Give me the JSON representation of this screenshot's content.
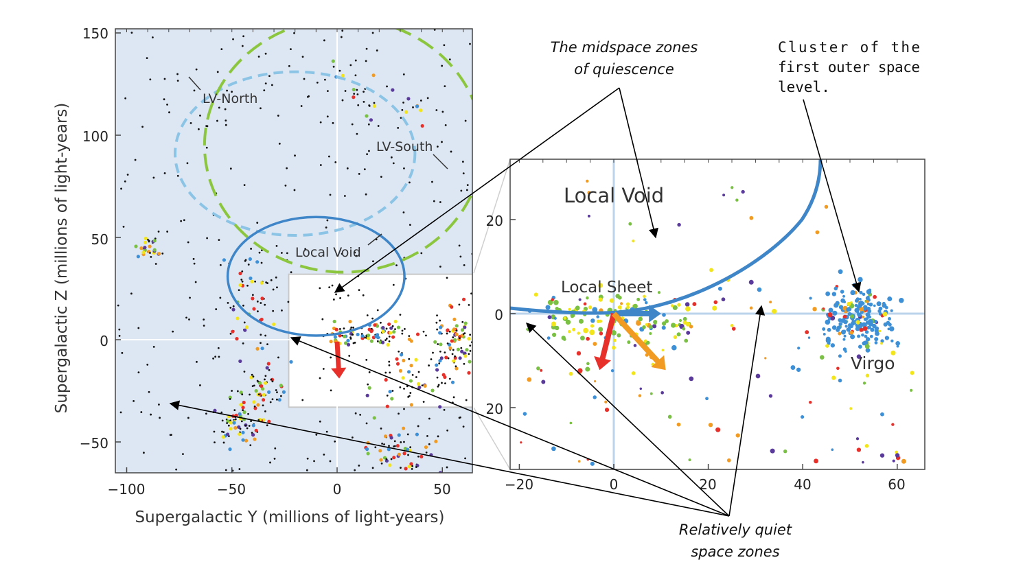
{
  "chart_data": [
    {
      "type": "scatter",
      "xlabel": "Supergalactic Y (millions of light-years)",
      "ylabel": "Supergalactic Z (millions of light-years)",
      "xlim": [
        -105,
        65
      ],
      "ylim": [
        -65,
        152
      ],
      "xticks": [
        "−100",
        "−50",
        "0",
        "50"
      ],
      "xtick_values": [
        -100,
        -50,
        0,
        50
      ],
      "yticks": [
        "150",
        "100",
        "50",
        "0",
        "−50"
      ],
      "ytick_values": [
        150,
        100,
        50,
        0,
        -50
      ],
      "background": "#dde7f4",
      "region_labels": {
        "lv_north": "LV-North",
        "lv_south": "LV-South",
        "local_void": "Local Void"
      },
      "ellipses": [
        {
          "name": "LV-North",
          "style": "dashed",
          "color": "#8cc4e6",
          "cx": -20,
          "cy": 91,
          "rx": 57,
          "ry": 40
        },
        {
          "name": "LV-South",
          "style": "dashed",
          "color": "#8cc63f",
          "cx": 3,
          "cy": 95,
          "rx": 66,
          "ry": 62
        },
        {
          "name": "Local Void",
          "style": "solid",
          "color": "#3f86c8",
          "cx": -10,
          "cy": 31,
          "rx": 42,
          "ry": 29
        }
      ],
      "inset_box": {
        "y0": -23,
        "y1": 65,
        "z0": -33,
        "z1": 32
      },
      "arrows": [
        {
          "color": "#e8302a",
          "from": [
            0,
            -1
          ],
          "to": [
            1,
            -19
          ]
        }
      ]
    },
    {
      "type": "scatter",
      "xlim": [
        -22,
        66
      ],
      "ylim": [
        -33,
        33
      ],
      "xticks": [
        "−20",
        "0",
        "20",
        "40",
        "60"
      ],
      "xtick_values": [
        -20,
        0,
        20,
        40,
        60
      ],
      "yticks": [
        "20",
        "0",
        "20"
      ],
      "ytick_values": [
        20,
        0,
        -20
      ],
      "labels": {
        "local_void": "Local Void",
        "local_sheet": "Local Sheet",
        "virgo": "Virgo"
      },
      "arrows": [
        {
          "color": "#3f86c8",
          "from": [
            0,
            0
          ],
          "to": [
            10,
            0
          ]
        },
        {
          "color": "#e8302a",
          "from": [
            0,
            0
          ],
          "to": [
            -3,
            -12
          ]
        },
        {
          "color": "#f29b22",
          "from": [
            0,
            0
          ],
          "to": [
            11,
            -12
          ]
        }
      ]
    }
  ],
  "annotations": {
    "midspace_line1": "The midspace zones",
    "midspace_line2": "of quiescence",
    "cluster_line1": "Cluster of the",
    "cluster_line2": "first outer space",
    "cluster_line3": "level.",
    "quiet_line1": "Relatively quiet",
    "quiet_line2": "space zones"
  },
  "colors": {
    "black_points": "#111111",
    "blue_points": "#3d8fd6",
    "purple_points": "#5a3a9a",
    "green_points": "#79c043",
    "yellow_points": "#f2e51c",
    "red_points": "#e8302a",
    "orange_points": "#f29b22"
  }
}
